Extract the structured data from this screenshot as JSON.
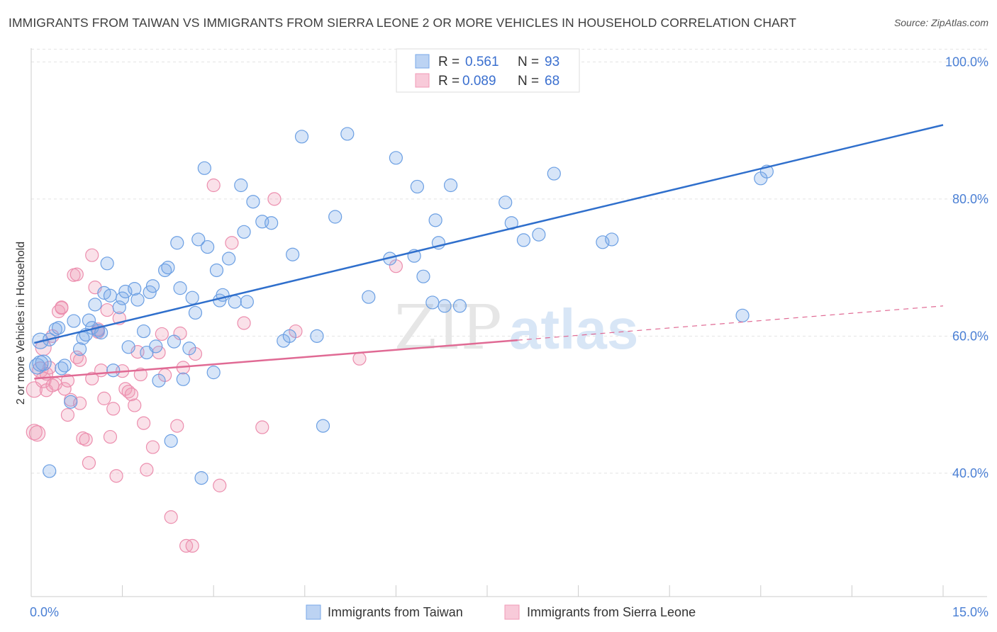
{
  "title": "IMMIGRANTS FROM TAIWAN VS IMMIGRANTS FROM SIERRA LEONE 2 OR MORE VEHICLES IN HOUSEHOLD CORRELATION CHART",
  "source": "Source: ZipAtlas.com",
  "watermark": {
    "zip": "ZIP",
    "atlas": "atlas"
  },
  "legend": {
    "rows": [
      {
        "r_label": "R =",
        "r_value": "0.561",
        "n_label": "N =",
        "n_value": "93"
      },
      {
        "r_label": "R =",
        "r_value": "0.089",
        "n_label": "N =",
        "n_value": "68"
      }
    ]
  },
  "chart_data": {
    "type": "scatter",
    "title": "IMMIGRANTS FROM TAIWAN VS IMMIGRANTS FROM SIERRA LEONE 2 OR MORE VEHICLES IN HOUSEHOLD CORRELATION CHART",
    "xlabel": "",
    "ylabel": "2 or more Vehicles in Household",
    "xlim": [
      0,
      15
    ],
    "ylim": [
      22,
      102
    ],
    "x_tick_labels": [
      "0.0%",
      "15.0%"
    ],
    "y_ticks": [
      40,
      60,
      80,
      100
    ],
    "y_tick_labels": [
      "40.0%",
      "60.0%",
      "80.0%",
      "100.0%"
    ],
    "grid": "horizontal dashed",
    "legend_position": "top-center",
    "series": [
      {
        "name": "Immigrants from Taiwan",
        "color": "#7aaae8",
        "line_color": "#2f6fcc",
        "R": 0.561,
        "N": 93,
        "trend": {
          "x": [
            0.05,
            15.0
          ],
          "y": [
            59.0,
            90.8
          ]
        },
        "points": [
          [
            0.1,
            55.6
          ],
          [
            0.15,
            59.3
          ],
          [
            0.2,
            56.1
          ],
          [
            0.3,
            59.5
          ],
          [
            0.3,
            40.3
          ],
          [
            0.4,
            61.0
          ],
          [
            0.45,
            61.2
          ],
          [
            0.5,
            55.3
          ],
          [
            0.55,
            55.7
          ],
          [
            0.65,
            50.4
          ],
          [
            0.7,
            62.2
          ],
          [
            0.8,
            58.1
          ],
          [
            0.85,
            59.7
          ],
          [
            0.9,
            60.2
          ],
          [
            0.95,
            62.3
          ],
          [
            1.0,
            61.2
          ],
          [
            1.05,
            64.6
          ],
          [
            1.1,
            60.8
          ],
          [
            1.15,
            60.5
          ],
          [
            1.2,
            66.3
          ],
          [
            1.25,
            70.6
          ],
          [
            1.3,
            65.9
          ],
          [
            1.35,
            55.0
          ],
          [
            1.45,
            64.2
          ],
          [
            1.5,
            65.5
          ],
          [
            1.55,
            66.5
          ],
          [
            1.6,
            58.4
          ],
          [
            1.7,
            66.9
          ],
          [
            1.75,
            65.3
          ],
          [
            1.85,
            60.7
          ],
          [
            1.9,
            57.6
          ],
          [
            1.95,
            66.4
          ],
          [
            2.0,
            67.3
          ],
          [
            2.05,
            58.5
          ],
          [
            2.1,
            53.5
          ],
          [
            2.2,
            69.6
          ],
          [
            2.25,
            70.0
          ],
          [
            2.3,
            44.7
          ],
          [
            2.35,
            59.2
          ],
          [
            2.4,
            73.6
          ],
          [
            2.45,
            67.0
          ],
          [
            2.5,
            53.7
          ],
          [
            2.6,
            58.2
          ],
          [
            2.65,
            65.6
          ],
          [
            2.7,
            63.4
          ],
          [
            2.75,
            74.1
          ],
          [
            2.8,
            39.3
          ],
          [
            2.85,
            84.5
          ],
          [
            2.9,
            73.0
          ],
          [
            3.0,
            54.7
          ],
          [
            3.05,
            69.6
          ],
          [
            3.1,
            65.2
          ],
          [
            3.15,
            66.0
          ],
          [
            3.25,
            71.3
          ],
          [
            3.35,
            65.0
          ],
          [
            3.45,
            82.0
          ],
          [
            3.5,
            75.2
          ],
          [
            3.55,
            65.0
          ],
          [
            3.65,
            79.6
          ],
          [
            3.8,
            76.7
          ],
          [
            3.95,
            76.5
          ],
          [
            4.15,
            59.3
          ],
          [
            4.25,
            60.0
          ],
          [
            4.3,
            71.9
          ],
          [
            4.45,
            89.1
          ],
          [
            4.7,
            60.0
          ],
          [
            4.8,
            46.9
          ],
          [
            5.0,
            77.4
          ],
          [
            5.2,
            89.5
          ],
          [
            5.55,
            65.7
          ],
          [
            5.9,
            71.3
          ],
          [
            6.0,
            86.0
          ],
          [
            6.3,
            71.7
          ],
          [
            6.35,
            81.8
          ],
          [
            6.45,
            68.7
          ],
          [
            6.6,
            64.9
          ],
          [
            6.65,
            76.9
          ],
          [
            6.7,
            73.6
          ],
          [
            6.8,
            64.4
          ],
          [
            6.9,
            82.0
          ],
          [
            7.05,
            64.4
          ],
          [
            7.8,
            79.5
          ],
          [
            7.9,
            76.5
          ],
          [
            8.1,
            74.0
          ],
          [
            8.35,
            74.8
          ],
          [
            8.6,
            83.7
          ],
          [
            9.4,
            73.7
          ],
          [
            9.55,
            74.1
          ],
          [
            11.7,
            63.0
          ],
          [
            12.0,
            83.0
          ],
          [
            12.1,
            84.0
          ],
          [
            6.5,
            100.0
          ],
          [
            0.15,
            56.0
          ]
        ]
      },
      {
        "name": "Immigrants from Sierra Leone",
        "color": "#f09ab6",
        "line_color": "#e06a94",
        "R": 0.089,
        "N": 68,
        "trend": {
          "x": [
            0.05,
            8.0
          ],
          "y": [
            53.8,
            59.4
          ],
          "dashed_to": {
            "x": 15.0,
            "y": 64.4
          }
        },
        "points": [
          [
            0.05,
            46.0
          ],
          [
            0.05,
            52.2
          ],
          [
            0.1,
            45.8
          ],
          [
            0.15,
            55.1
          ],
          [
            0.2,
            53.6
          ],
          [
            0.25,
            52.1
          ],
          [
            0.3,
            55.4
          ],
          [
            0.35,
            60.0
          ],
          [
            0.4,
            53.0
          ],
          [
            0.45,
            63.6
          ],
          [
            0.5,
            64.1
          ],
          [
            0.55,
            52.3
          ],
          [
            0.6,
            48.5
          ],
          [
            0.65,
            50.7
          ],
          [
            0.7,
            68.9
          ],
          [
            0.75,
            56.9
          ],
          [
            0.8,
            50.2
          ],
          [
            0.85,
            45.1
          ],
          [
            0.9,
            44.9
          ],
          [
            0.95,
            41.5
          ],
          [
            1.0,
            53.8
          ],
          [
            1.05,
            67.1
          ],
          [
            1.1,
            61.0
          ],
          [
            1.15,
            55.0
          ],
          [
            1.2,
            50.9
          ],
          [
            1.25,
            63.8
          ],
          [
            1.3,
            45.3
          ],
          [
            1.35,
            49.4
          ],
          [
            1.4,
            39.6
          ],
          [
            1.45,
            62.6
          ],
          [
            1.5,
            54.9
          ],
          [
            1.55,
            52.3
          ],
          [
            1.6,
            51.9
          ],
          [
            1.65,
            51.5
          ],
          [
            1.7,
            49.9
          ],
          [
            1.75,
            57.7
          ],
          [
            1.8,
            54.4
          ],
          [
            1.85,
            47.3
          ],
          [
            1.9,
            40.5
          ],
          [
            2.0,
            43.8
          ],
          [
            2.1,
            57.6
          ],
          [
            2.15,
            60.3
          ],
          [
            2.2,
            54.3
          ],
          [
            2.3,
            33.6
          ],
          [
            2.4,
            46.9
          ],
          [
            2.45,
            60.4
          ],
          [
            2.5,
            55.4
          ],
          [
            2.55,
            29.4
          ],
          [
            2.65,
            29.4
          ],
          [
            2.7,
            57.4
          ],
          [
            3.0,
            82.0
          ],
          [
            3.1,
            38.2
          ],
          [
            3.3,
            73.6
          ],
          [
            3.5,
            61.9
          ],
          [
            3.8,
            46.7
          ],
          [
            4.0,
            80.0
          ],
          [
            4.35,
            60.7
          ],
          [
            5.4,
            56.7
          ],
          [
            6.0,
            70.2
          ],
          [
            0.2,
            58.3
          ],
          [
            0.5,
            64.2
          ],
          [
            0.75,
            69.0
          ],
          [
            1.0,
            71.8
          ],
          [
            0.35,
            52.8
          ],
          [
            0.6,
            53.5
          ],
          [
            1.1,
            60.6
          ],
          [
            0.8,
            56.5
          ],
          [
            0.25,
            54.5
          ]
        ]
      }
    ]
  },
  "bottom_legend": [
    {
      "label": "Immigrants from Taiwan"
    },
    {
      "label": "Immigrants from Sierra Leone"
    }
  ],
  "colors": {
    "taiwan_fill": "#7aaae8",
    "taiwan_line": "#2f6fcc",
    "sierra_fill": "#f09ab6",
    "sierra_line": "#e06a94",
    "tick_text": "#4a7fd4",
    "grid": "#dddddd"
  }
}
